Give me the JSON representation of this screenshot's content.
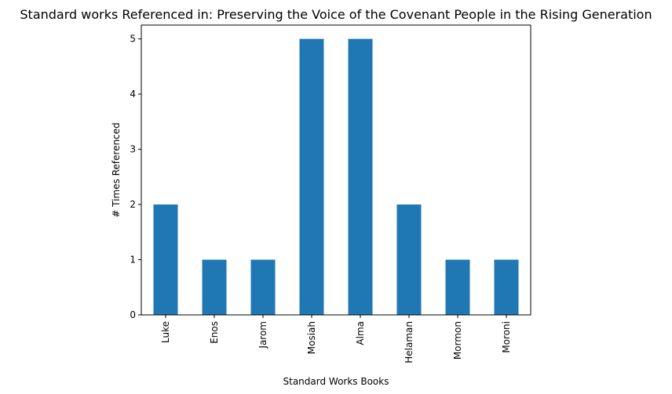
{
  "chart_data": {
    "type": "bar",
    "title": "Standard works Referenced in: Preserving the Voice of the Covenant People in the Rising Generation",
    "xlabel": "Standard Works Books",
    "ylabel": "# Times Referenced",
    "categories": [
      "Luke",
      "Enos",
      "Jarom",
      "Mosiah",
      "Alma",
      "Helaman",
      "Mormon",
      "Moroni"
    ],
    "values": [
      2,
      1,
      1,
      5,
      5,
      2,
      1,
      1
    ],
    "ylim": [
      0,
      5.25
    ],
    "yticks": [
      "0",
      "1",
      "2",
      "3",
      "4",
      "5"
    ],
    "bar_color": "#1f77b4",
    "grid": false,
    "legend": "none"
  }
}
